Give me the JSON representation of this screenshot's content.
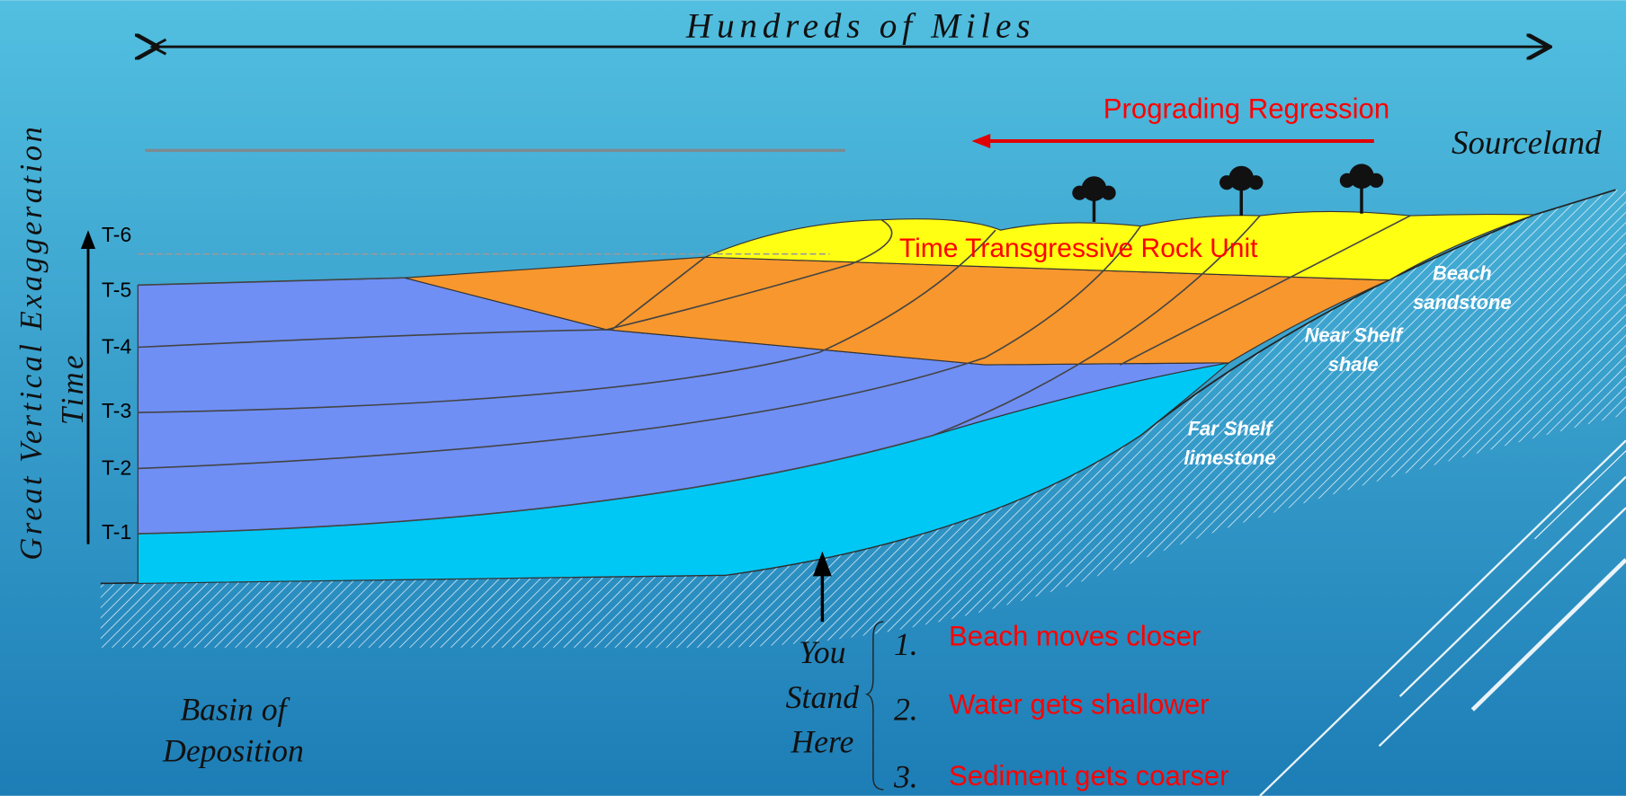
{
  "header": {
    "scale_label": "Hundreds of Miles"
  },
  "axis": {
    "vertical_label": "Great Vertical Exaggeration",
    "time_label": "Time",
    "time_lines": [
      "T-6",
      "T-5",
      "T-4",
      "T-3",
      "T-2",
      "T-1"
    ]
  },
  "annotations": {
    "regression": "Prograding Regression",
    "sourceland": "Sourceland",
    "rock_unit": "Time Transgressive Rock Unit",
    "basin": [
      "Basin of",
      "Deposition"
    ],
    "observer": [
      "You",
      "Stand",
      "Here"
    ]
  },
  "facies": [
    {
      "name": "Beach",
      "rock": "sandstone"
    },
    {
      "name": "Near Shelf",
      "rock": "shale"
    },
    {
      "name": "Far Shelf",
      "rock": "limestone"
    }
  ],
  "observations": [
    {
      "number": "1.",
      "text": "Beach moves closer"
    },
    {
      "number": "2.",
      "text": "Water gets shallower"
    },
    {
      "number": "3.",
      "text": "Sediment gets coarser"
    }
  ]
}
